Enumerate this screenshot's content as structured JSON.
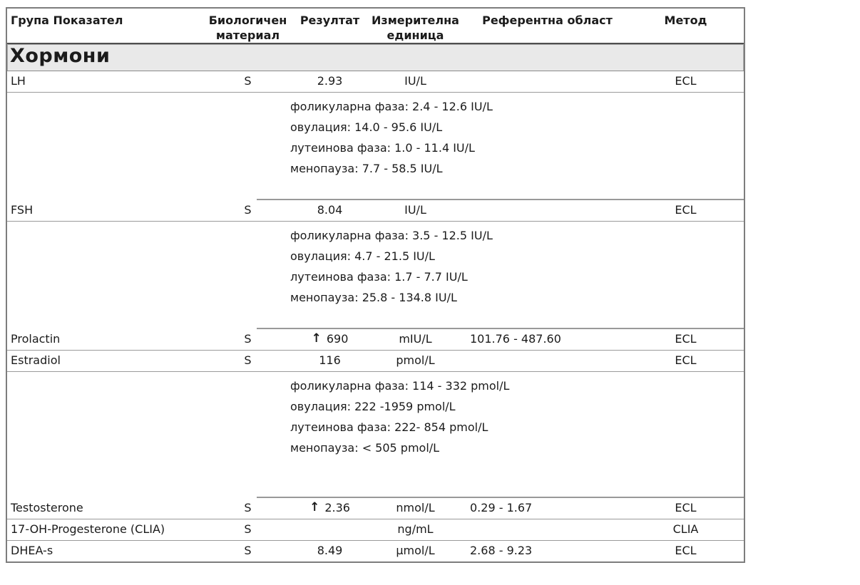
{
  "document": {
    "section_title": "Хормони",
    "columns": {
      "group": "Група Показател",
      "material": "Биологичен материал",
      "result": "Резултат",
      "unit": "Измерителна единица",
      "reference": "Референтна област",
      "method": "Метод"
    },
    "colors": {
      "section_background": "#e9e9e9",
      "border": "#8a8a8a",
      "text": "#1b1b1b"
    },
    "rows": [
      {
        "name": "LH",
        "material": "S",
        "arrow": "",
        "result": "2.93",
        "unit": "IU/L",
        "reference": "",
        "method": "ECL"
      },
      {
        "lines": [
          "фоликуларна фаза: 2.4 - 12.6 IU/L",
          "овулация: 14.0 - 95.6 IU/L",
          "лутеинова фаза: 1.0 - 11.4 IU/L",
          "менопауза: 7.7 - 58.5 IU/L"
        ]
      },
      {
        "name": "FSH",
        "material": "S",
        "arrow": "",
        "result": "8.04",
        "unit": "IU/L",
        "reference": "",
        "method": "ECL"
      },
      {
        "lines": [
          "фоликуларна фаза: 3.5 - 12.5 IU/L",
          "овулация: 4.7 - 21.5 IU/L",
          "лутеинова фаза: 1.7 - 7.7 IU/L",
          "менопауза: 25.8 - 134.8 IU/L"
        ]
      },
      {
        "name": "Prolactin",
        "material": "S",
        "arrow": "↑",
        "result": "690",
        "unit": "mIU/L",
        "reference": "101.76 - 487.60",
        "method": "ECL"
      },
      {
        "name": "Estradiol",
        "material": "S",
        "arrow": "",
        "result": "116",
        "unit": "pmol/L",
        "reference": "",
        "method": "ECL"
      },
      {
        "lines": [
          "фоликуларна фаза: 114 - 332 pmol/L",
          "овулация: 222 -1959 pmol/L",
          "лутеинова фаза: 222- 854 pmol/L",
          "менопауза: < 505 pmol/L"
        ]
      },
      {
        "name": "Testosterone",
        "material": "S",
        "arrow": "↑",
        "result": "2.36",
        "unit": "nmol/L",
        "reference": "0.29 - 1.67",
        "method": "ECL"
      },
      {
        "name": "17-OH-Progesterone (CLIA)",
        "material": "S",
        "arrow": "",
        "result": "",
        "unit": "ng/mL",
        "reference": "",
        "method": "CLIA"
      },
      {
        "name": "DHEA-s",
        "material": "S",
        "arrow": "",
        "result": "8.49",
        "unit": "µmol/L",
        "reference": "2.68 - 9.23",
        "method": "ECL"
      }
    ]
  }
}
